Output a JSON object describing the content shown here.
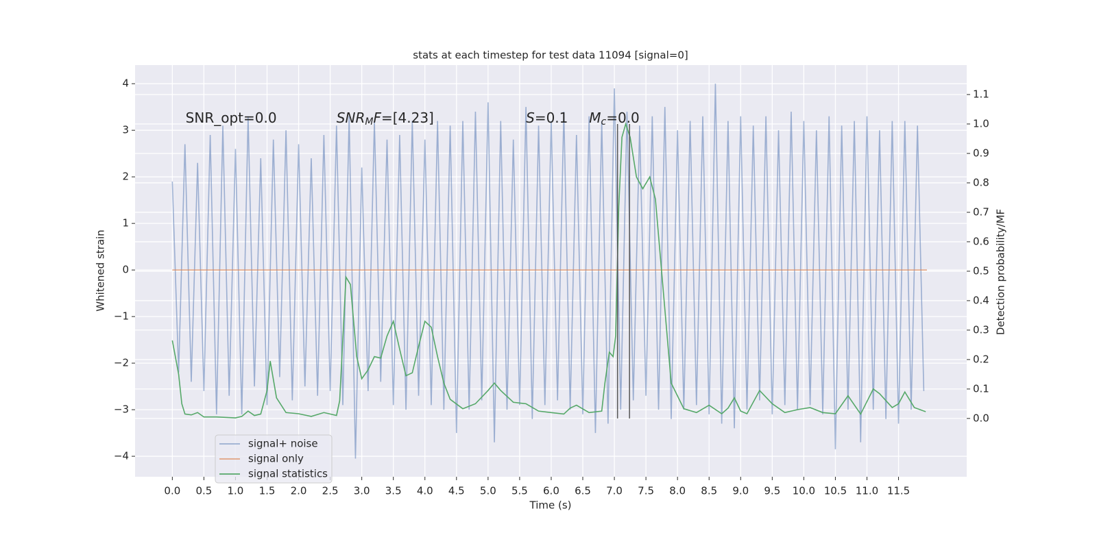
{
  "chart_data": {
    "type": "line",
    "title": "stats at each timestep for test data 11094 [signal=0]",
    "xlabel": "Time (s)",
    "ylabel": "Whitened strain",
    "y2label": "Detection probability/MF",
    "xlim": [
      -0.59,
      12.58
    ],
    "ylim": [
      -4.44,
      4.4
    ],
    "y2lim": [
      -0.198,
      1.2
    ],
    "xticks": [
      {
        "value": 0,
        "label": "0.0"
      },
      0.5,
      {
        "value": 1,
        "label": "1.0"
      },
      1.5,
      {
        "value": 2,
        "label": "2.0"
      },
      2.5,
      {
        "value": 3,
        "label": "3.0"
      },
      3.5,
      {
        "value": 4,
        "label": "4.0"
      },
      4.5,
      {
        "value": 5,
        "label": "5.0"
      },
      5.5,
      {
        "value": 6,
        "label": "6.0"
      },
      6.5,
      {
        "value": 7,
        "label": "7.0"
      },
      7.5,
      {
        "value": 8,
        "label": "8.0"
      },
      8.5,
      {
        "value": 9,
        "label": "9.0"
      },
      9.5,
      {
        "value": 10,
        "label": "10.0"
      },
      10.5,
      {
        "value": 11,
        "label": "11.0"
      },
      11.5
    ],
    "yticks": [
      {
        "value": -4,
        "label": "−4"
      },
      {
        "value": -3,
        "label": "−3"
      },
      {
        "value": -2,
        "label": "−2"
      },
      {
        "value": -1,
        "label": "−1"
      },
      0,
      1,
      2,
      3,
      4
    ],
    "y2ticks": [
      {
        "value": 0,
        "label": "0.0"
      },
      0.1,
      0.2,
      0.3,
      0.4,
      0.5,
      0.6,
      0.7,
      0.8,
      0.9,
      {
        "value": 1,
        "label": "1.0"
      },
      1.1
    ],
    "grid": true,
    "legend": "lower left",
    "series": [
      {
        "name": "signal+ noise",
        "color": "#4c72b0",
        "opacity": 0.5,
        "x": [
          0,
          0.1,
          0.2,
          0.3,
          0.4,
          0.5,
          0.6,
          0.7,
          0.8,
          0.9,
          1,
          1.1,
          1.2,
          1.3,
          1.4,
          1.5,
          1.6,
          1.7,
          1.8,
          1.9,
          2,
          2.1,
          2.2,
          2.3,
          2.4,
          2.5,
          2.6,
          2.7,
          2.8,
          2.9,
          3,
          3.1,
          3.2,
          3.3,
          3.4,
          3.5,
          3.6,
          3.7,
          3.8,
          3.9,
          4,
          4.1,
          4.2,
          4.3,
          4.4,
          4.5,
          4.6,
          4.7,
          4.8,
          4.9,
          5,
          5.1,
          5.2,
          5.3,
          5.4,
          5.5,
          5.6,
          5.7,
          5.8,
          5.9,
          6,
          6.1,
          6.2,
          6.3,
          6.4,
          6.5,
          6.6,
          6.7,
          6.8,
          6.9,
          7,
          7.1,
          7.2,
          7.3,
          7.4,
          7.5,
          7.6,
          7.7,
          7.8,
          7.9,
          8,
          8.1,
          8.2,
          8.3,
          8.4,
          8.5,
          8.6,
          8.7,
          8.8,
          8.9,
          9,
          9.1,
          9.2,
          9.3,
          9.4,
          9.5,
          9.6,
          9.7,
          9.8,
          9.9,
          10,
          10.1,
          10.2,
          10.3,
          10.4,
          10.5,
          10.6,
          10.7,
          10.8,
          10.9,
          11,
          11.1,
          11.2,
          11.3,
          11.4,
          11.5,
          11.6,
          11.7,
          11.8,
          11.9
        ],
        "values": [
          1.9,
          -2.2,
          2.7,
          -2.4,
          2.3,
          -2.6,
          2.9,
          -3.1,
          3.1,
          -2.7,
          2.6,
          -3.1,
          3.3,
          -2.5,
          2.4,
          -2.9,
          2.8,
          -2.3,
          3.0,
          -2.8,
          2.7,
          -2.5,
          2.4,
          -2.7,
          2.9,
          -2.6,
          3.1,
          -2.9,
          3.3,
          -4.05,
          2.2,
          -2.6,
          3.2,
          -2.4,
          2.8,
          -2.9,
          2.9,
          -3.0,
          3.2,
          -2.7,
          2.8,
          -2.9,
          3.2,
          -3.0,
          3.1,
          -3.5,
          3.2,
          -3.0,
          3.4,
          -2.8,
          3.6,
          -3.7,
          3.2,
          -3.0,
          2.8,
          -2.9,
          3.5,
          -3.2,
          3.1,
          -2.9,
          3.2,
          -2.8,
          3.4,
          -3.0,
          2.9,
          -3.1,
          3.3,
          -3.5,
          3.2,
          -3.3,
          3.9,
          -3.0,
          3.4,
          -2.8,
          3.1,
          -2.7,
          3.3,
          -3.0,
          3.5,
          -3.2,
          3.0,
          -3.0,
          3.2,
          -2.9,
          3.3,
          -3.1,
          4.0,
          -3.3,
          3.2,
          -3.4,
          3.3,
          -3.0,
          3.1,
          -2.8,
          3.3,
          -3.1,
          3.0,
          -2.9,
          3.4,
          -3.0,
          3.2,
          -2.9,
          3.0,
          -3.1,
          3.3,
          -3.85,
          3.1,
          -3.0,
          3.2,
          -3.7,
          3.3,
          -3.0,
          3.0,
          -3.2,
          3.2,
          -3.3,
          3.2,
          -3.0,
          3.1,
          -2.6
        ]
      },
      {
        "name": "signal only",
        "color": "#dd8452",
        "opacity": 0.7,
        "x": [
          0,
          11.95
        ],
        "values": [
          0,
          0
        ]
      },
      {
        "name": "signal statistics",
        "color": "#55a868",
        "axis": "y2",
        "x": [
          0,
          0.1,
          0.15,
          0.2,
          0.3,
          0.4,
          0.5,
          0.7,
          1.0,
          1.1,
          1.2,
          1.3,
          1.4,
          1.5,
          1.55,
          1.65,
          1.8,
          2.0,
          2.2,
          2.4,
          2.6,
          2.65,
          2.75,
          2.82,
          2.92,
          3.0,
          3.1,
          3.2,
          3.3,
          3.4,
          3.5,
          3.6,
          3.7,
          3.8,
          3.9,
          4.0,
          4.1,
          4.2,
          4.3,
          4.4,
          4.6,
          4.8,
          5.0,
          5.1,
          5.2,
          5.4,
          5.6,
          5.8,
          6.0,
          6.2,
          6.3,
          6.4,
          6.6,
          6.8,
          6.85,
          6.92,
          6.98,
          7.02,
          7.07,
          7.12,
          7.18,
          7.25,
          7.35,
          7.45,
          7.56,
          7.65,
          7.78,
          7.9,
          8.1,
          8.3,
          8.5,
          8.7,
          8.8,
          8.9,
          9.0,
          9.1,
          9.3,
          9.5,
          9.7,
          9.9,
          10.1,
          10.3,
          10.5,
          10.7,
          10.9,
          11.1,
          11.2,
          11.4,
          11.5,
          11.6,
          11.75,
          11.93
        ],
        "values": [
          0.265,
          0.15,
          0.05,
          0.015,
          0.012,
          0.02,
          0.005,
          0.005,
          0.002,
          0.007,
          0.025,
          0.01,
          0.015,
          0.095,
          0.195,
          0.07,
          0.02,
          0.016,
          0.007,
          0.02,
          0.01,
          0.06,
          0.48,
          0.455,
          0.21,
          0.135,
          0.165,
          0.21,
          0.205,
          0.28,
          0.33,
          0.235,
          0.145,
          0.155,
          0.245,
          0.33,
          0.31,
          0.21,
          0.12,
          0.065,
          0.033,
          0.05,
          0.095,
          0.12,
          0.095,
          0.055,
          0.05,
          0.025,
          0.02,
          0.015,
          0.035,
          0.045,
          0.02,
          0.025,
          0.12,
          0.225,
          0.21,
          0.28,
          0.72,
          0.955,
          1.0,
          0.955,
          0.82,
          0.78,
          0.82,
          0.745,
          0.42,
          0.12,
          0.033,
          0.02,
          0.045,
          0.016,
          0.035,
          0.07,
          0.025,
          0.016,
          0.095,
          0.05,
          0.02,
          0.03,
          0.037,
          0.02,
          0.016,
          0.077,
          0.015,
          0.1,
          0.084,
          0.037,
          0.05,
          0.09,
          0.037,
          0.023
        ]
      }
    ],
    "vlines": {
      "x": [
        7.05,
        7.24
      ],
      "y2": [
        0,
        1.0
      ],
      "color": "#555555"
    },
    "annotations": [
      {
        "x": 0.21,
        "y": 3.25,
        "parts": [
          {
            "text": "SNR_opt=0.0"
          }
        ]
      },
      {
        "x": 2.6,
        "y": 3.25,
        "parts": [
          {
            "text": "SNR",
            "italic": true
          },
          {
            "text": "M",
            "italic": true,
            "sub": true
          },
          {
            "text": "F",
            "italic": true
          },
          {
            "text": "=[4.23]"
          }
        ]
      },
      {
        "x": 5.6,
        "y": 3.25,
        "parts": [
          {
            "text": "S",
            "italic": true
          },
          {
            "text": "=0.1"
          }
        ]
      },
      {
        "x": 6.6,
        "y": 3.25,
        "parts": [
          {
            "text": "M",
            "italic": true
          },
          {
            "text": "c",
            "italic": true,
            "sub": true
          },
          {
            "text": "=0.0"
          }
        ]
      }
    ]
  }
}
